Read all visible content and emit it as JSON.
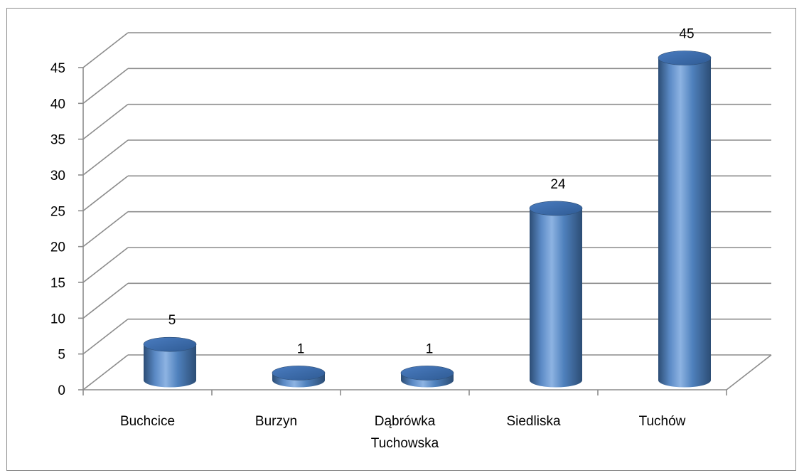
{
  "chart_data": {
    "type": "bar",
    "style": "3d-cylinder",
    "categories": [
      "Buchcice",
      "Burzyn",
      "Dąbrówka Tuchowska",
      "Siedliska",
      "Tuchów"
    ],
    "category_lines": [
      [
        "Buchcice"
      ],
      [
        "Burzyn"
      ],
      [
        "Dąbrówka",
        "Tuchowska"
      ],
      [
        "Siedliska"
      ],
      [
        "Tuchów"
      ]
    ],
    "values": [
      5,
      1,
      1,
      24,
      45
    ],
    "data_labels": [
      "5",
      "1",
      "1",
      "24",
      "45"
    ],
    "y_ticks": [
      "0",
      "5",
      "10",
      "15",
      "20",
      "25",
      "30",
      "35",
      "40",
      "45"
    ],
    "ylim": [
      0,
      45
    ],
    "ytick_step": 5,
    "grid": true,
    "legend": "none",
    "colors": {
      "bar": "#4f81bd",
      "bar_light": "#8db3e2",
      "bar_dark": "#2c4d75",
      "bar_top": "#3a6aa6",
      "grid": "#8c8c8c"
    }
  }
}
